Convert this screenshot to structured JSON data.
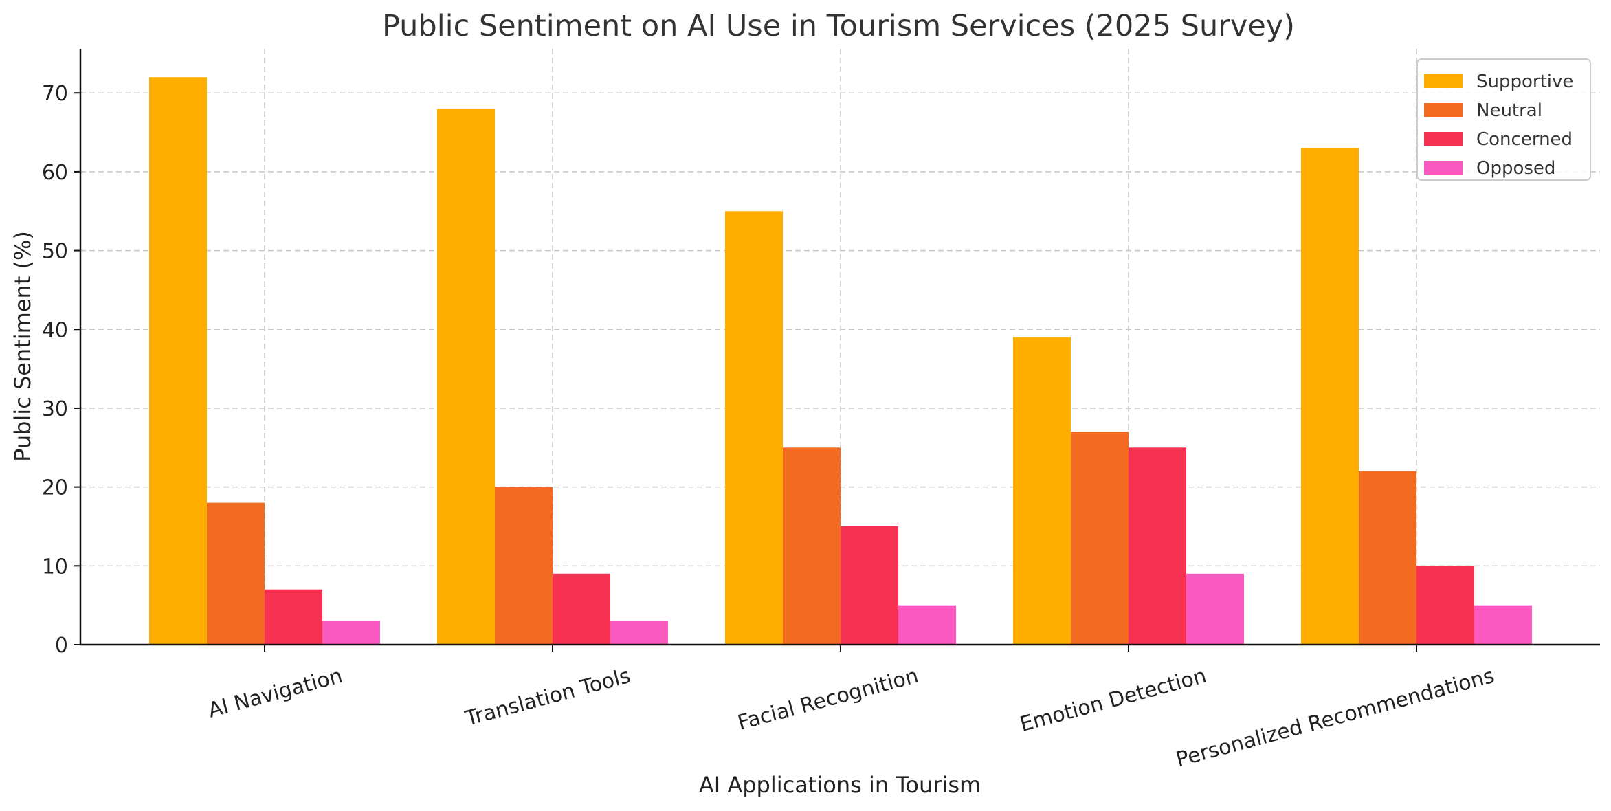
{
  "chart_data": {
    "type": "bar",
    "title": "Public Sentiment on AI Use in Tourism Services (2025 Survey)",
    "xlabel": "AI Applications in Tourism",
    "ylabel": "Public Sentiment (%)",
    "categories": [
      "AI Navigation",
      "Translation Tools",
      "Facial Recognition",
      "Emotion Detection",
      "Personalized Recommendations"
    ],
    "series": [
      {
        "name": "Supportive",
        "color": "#FFAE00",
        "values": [
          72,
          68,
          55,
          39,
          63
        ]
      },
      {
        "name": "Neutral",
        "color": "#F26B21",
        "values": [
          18,
          20,
          25,
          27,
          22
        ]
      },
      {
        "name": "Concerned",
        "color": "#F73152",
        "values": [
          7,
          9,
          15,
          25,
          10
        ]
      },
      {
        "name": "Opposed",
        "color": "#FA5AC0",
        "values": [
          3,
          3,
          5,
          9,
          5
        ]
      }
    ],
    "ylim": [
      0,
      75.6
    ],
    "yticks": [
      0,
      10,
      20,
      30,
      40,
      50,
      60,
      70
    ],
    "grid": true,
    "legend_position": "top-right"
  }
}
